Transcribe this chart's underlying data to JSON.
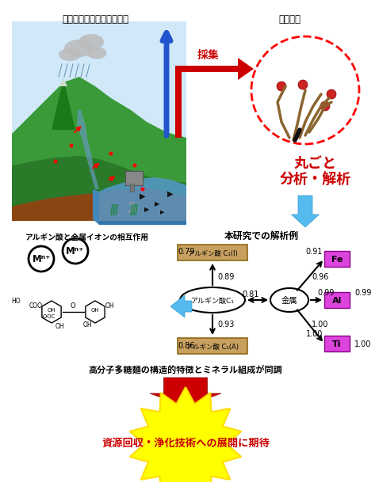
{
  "title_top_left": "人間活動を含めた物質循環",
  "title_top_right": "大型藻類",
  "label_collect": "採集",
  "label_analysis": "丸ごと\n分析・解析",
  "label_analysis_title": "本研究での解析例",
  "label_left_section": "アルギン酸と金属イオンの相互作用",
  "label_bottom_text": "高分子多糖麺の構造的特徴とミネラル組成が同調",
  "label_bottom_red": "資源回収・浄化技術への展開に期待",
  "node_alginate_c1": "アルギン酸C₁",
  "node_metal": "金属",
  "node_alginate_i": "アルギン酸 C₁(I)",
  "node_alginate_a": "アルギン酸 C₁(A)",
  "node_fe": "Fe",
  "node_al": "Al",
  "node_ti": "Ti",
  "val_alginate_i": "0.79",
  "val_alginate_a": "0.86",
  "val_fe": "0.91",
  "val_al": "0.99",
  "val_ti": "1.00",
  "val_c1_to_i": "0.89",
  "val_c1_to_a": "0.93",
  "val_c1_metal": "0.81",
  "val_metal_fe": "0.96",
  "val_metal_al": "0.99",
  "val_metal_ti": "1.00",
  "color_alginate_box": "#c8a060",
  "color_alginate_box_edge": "#8B6914",
  "color_metal_box": "#dd44dd",
  "color_metal_box_edge": "#880088",
  "color_red": "#cc0000",
  "color_blue_arrow": "#2255cc",
  "color_cyan_arrow": "#44aaee",
  "background_color": "#ffffff"
}
